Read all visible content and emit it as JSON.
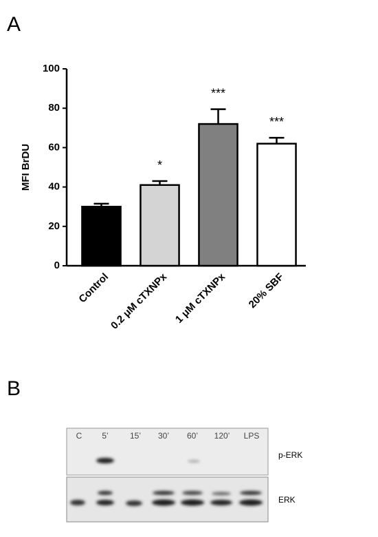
{
  "panel_labels": [
    "A",
    "B"
  ],
  "chart_data": {
    "type": "bar",
    "ylabel": "MFI BrDU",
    "categories": [
      "Control",
      "0.2 μM cTXNPx",
      "1 μM cTXNPx",
      "20% SBF"
    ],
    "values": [
      30,
      41,
      72,
      62
    ],
    "errors": [
      1.5,
      2,
      7.5,
      3
    ],
    "colors": [
      "#000000",
      "#d4d4d4",
      "#808080",
      "#ffffff"
    ],
    "annotations": [
      null,
      "*",
      "***",
      "***"
    ],
    "ylim": [
      0,
      100
    ],
    "yticks": [
      0,
      20,
      40,
      60,
      80,
      100
    ]
  },
  "blot": {
    "lanes": [
      "C",
      "5’",
      "15’",
      "30’",
      "60’",
      "120’",
      "LPS"
    ],
    "rows": [
      "p-ERK",
      "ERK"
    ]
  }
}
